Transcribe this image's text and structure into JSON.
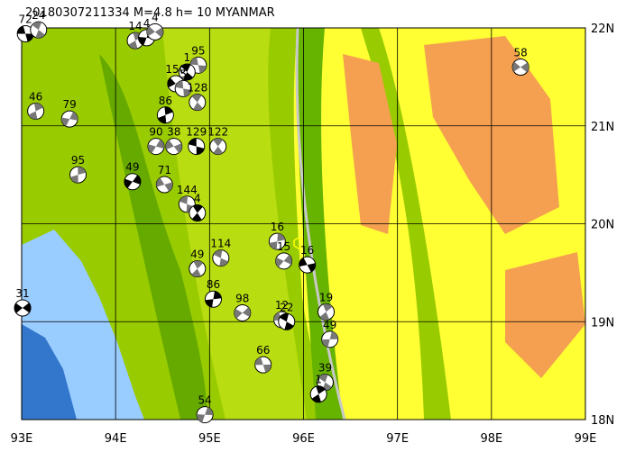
{
  "map": {
    "title": "20180307211334 M=4.8 h= 10 MYANMAR",
    "xlim": [
      93,
      99
    ],
    "ylim": [
      18,
      22
    ],
    "xticks": [
      {
        "value": 93,
        "label": "93E"
      },
      {
        "value": 94,
        "label": "94E"
      },
      {
        "value": 95,
        "label": "95E"
      },
      {
        "value": 96,
        "label": "96E"
      },
      {
        "value": 97,
        "label": "97E"
      },
      {
        "value": 98,
        "label": "98E"
      },
      {
        "value": 99,
        "label": "99E"
      }
    ],
    "yticks": [
      {
        "value": 18,
        "label": "18N"
      },
      {
        "value": 19,
        "label": "19N"
      },
      {
        "value": 20,
        "label": "20N"
      },
      {
        "value": 21,
        "label": "21N"
      },
      {
        "value": 22,
        "label": "22N"
      }
    ],
    "events": [
      {
        "label": "72",
        "lon": 93.04,
        "lat": 21.94
      },
      {
        "label": "24",
        "lon": 93.18,
        "lat": 21.98
      },
      {
        "label": "14",
        "lon": 94.21,
        "lat": 21.87
      },
      {
        "label": "4",
        "lon": 94.33,
        "lat": 21.9
      },
      {
        "label": "4",
        "lon": 94.42,
        "lat": 21.96
      },
      {
        "label": "95",
        "lon": 94.88,
        "lat": 21.62
      },
      {
        "label": "1",
        "lon": 94.76,
        "lat": 21.55
      },
      {
        "label": "46",
        "lon": 93.15,
        "lat": 21.15
      },
      {
        "label": "79",
        "lon": 93.51,
        "lat": 21.07
      },
      {
        "label": "150",
        "lon": 94.64,
        "lat": 21.43
      },
      {
        "label": "5",
        "lon": 94.72,
        "lat": 21.38
      },
      {
        "label": "128",
        "lon": 94.87,
        "lat": 21.24
      },
      {
        "label": "86",
        "lon": 94.53,
        "lat": 21.11
      },
      {
        "label": "90",
        "lon": 94.43,
        "lat": 20.79
      },
      {
        "label": "38",
        "lon": 94.62,
        "lat": 20.79
      },
      {
        "label": "129",
        "lon": 94.86,
        "lat": 20.79
      },
      {
        "label": "122",
        "lon": 95.09,
        "lat": 20.79
      },
      {
        "label": "95",
        "lon": 93.6,
        "lat": 20.5
      },
      {
        "label": "49",
        "lon": 94.18,
        "lat": 20.43
      },
      {
        "label": "71",
        "lon": 94.52,
        "lat": 20.4
      },
      {
        "label": "144",
        "lon": 94.76,
        "lat": 20.2
      },
      {
        "label": "4",
        "lon": 94.87,
        "lat": 20.11
      },
      {
        "label": "16",
        "lon": 95.72,
        "lat": 19.82
      },
      {
        "label": "15",
        "lon": 95.79,
        "lat": 19.62
      },
      {
        "label": "16",
        "lon": 96.04,
        "lat": 19.58
      },
      {
        "label": "114",
        "lon": 95.12,
        "lat": 19.65
      },
      {
        "label": "49",
        "lon": 94.87,
        "lat": 19.54
      },
      {
        "label": "86",
        "lon": 95.04,
        "lat": 19.23
      },
      {
        "label": "98",
        "lon": 95.35,
        "lat": 19.09
      },
      {
        "label": "12",
        "lon": 95.77,
        "lat": 19.02
      },
      {
        "label": "22",
        "lon": 95.82,
        "lat": 19.0
      },
      {
        "label": "19",
        "lon": 96.24,
        "lat": 19.1
      },
      {
        "label": "49",
        "lon": 96.28,
        "lat": 18.82
      },
      {
        "label": "31",
        "lon": 93.01,
        "lat": 19.14
      },
      {
        "label": "66",
        "lon": 95.57,
        "lat": 18.56
      },
      {
        "label": "39",
        "lon": 96.23,
        "lat": 18.38
      },
      {
        "label": "1",
        "lon": 96.16,
        "lat": 18.26
      },
      {
        "label": "54",
        "lon": 94.95,
        "lat": 18.05
      },
      {
        "label": "58",
        "lon": 98.31,
        "lat": 21.6
      }
    ]
  }
}
